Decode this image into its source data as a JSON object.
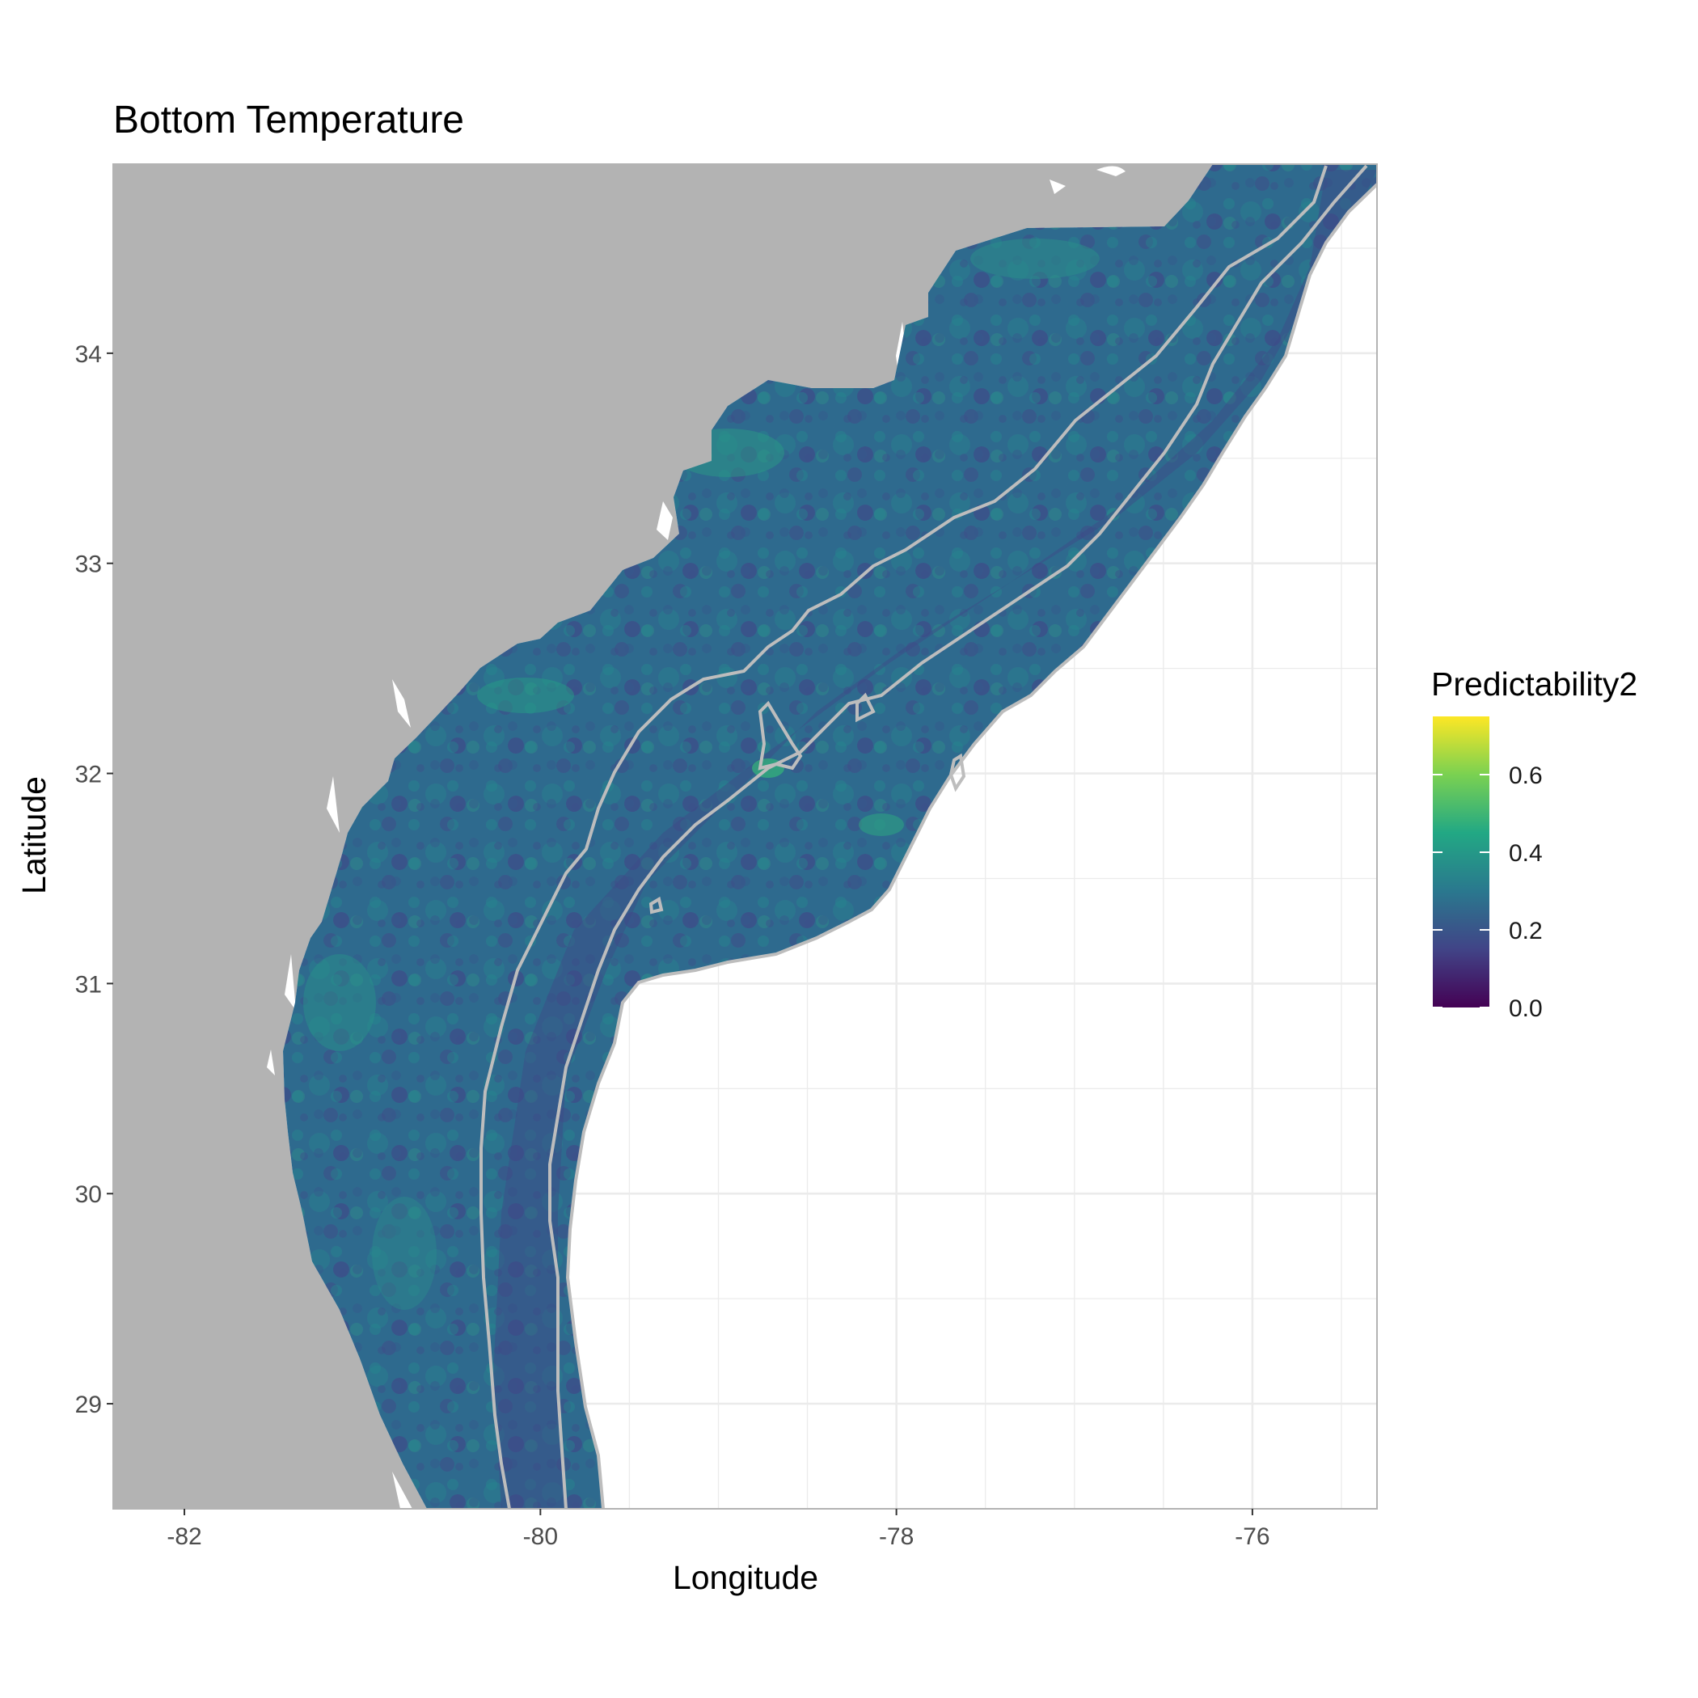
{
  "title": "Bottom Temperature",
  "x_axis": {
    "label": "Longitude",
    "ticks": [
      "-82",
      "-80",
      "-78",
      "-76"
    ]
  },
  "y_axis": {
    "label": "Latitude",
    "ticks": [
      "29",
      "30",
      "31",
      "32",
      "33",
      "34"
    ]
  },
  "legend": {
    "title": "Predictability2",
    "ticks": [
      "0.6",
      "0.4",
      "0.2",
      "0.0"
    ]
  },
  "colors": {
    "land": "#b3b3b3",
    "panel_background": "#ffffff",
    "grid": "#ebebeb",
    "panel_border": "#b3b3b3",
    "contour": "#bdbdbd",
    "viridis": [
      "#440154",
      "#414487",
      "#2a788e",
      "#22a884",
      "#7ad151",
      "#fde725"
    ]
  },
  "chart_data": {
    "type": "heatmap",
    "title": "Bottom Temperature",
    "xlabel": "Longitude",
    "ylabel": "Latitude",
    "xlim": [
      -82.4,
      -75.3
    ],
    "ylim": [
      28.5,
      34.9
    ],
    "x_ticks": [
      -82,
      -80,
      -78,
      -76
    ],
    "y_ticks": [
      29,
      30,
      31,
      32,
      33,
      34
    ],
    "grid": true,
    "legend_position": "right",
    "fill_variable": "Predictability2",
    "fill_scale": "viridis",
    "fill_range": [
      0.0,
      0.75
    ],
    "legend_ticks": [
      0.0,
      0.2,
      0.4,
      0.6
    ],
    "typical_fill_range": [
      0.15,
      0.5
    ]
  }
}
